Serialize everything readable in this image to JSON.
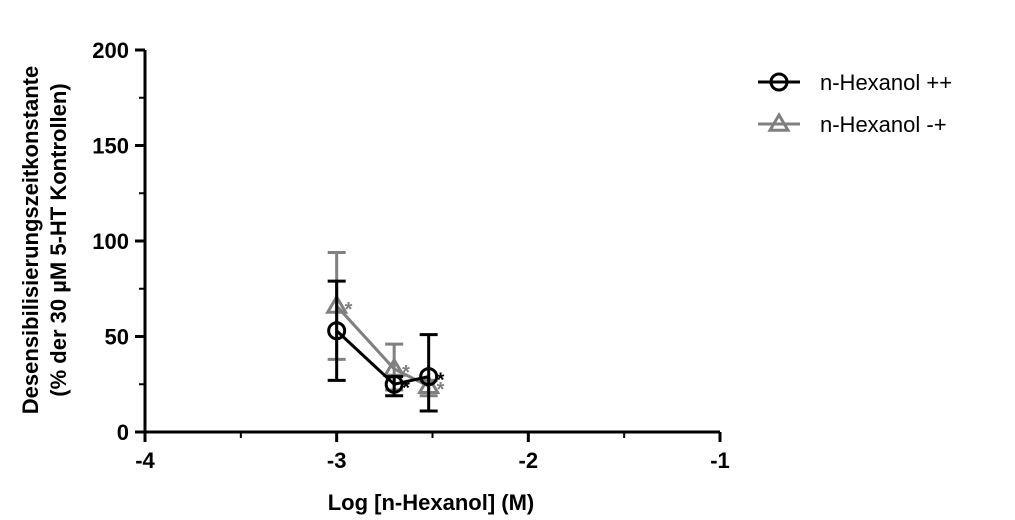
{
  "chart_data": {
    "type": "scatter",
    "title": "",
    "xlabel": "Log [n-Hexanol] (M)",
    "ylabel_line1": "Desensibilisierungszeitkonstante",
    "ylabel_line2": "(% der 30 µM 5-HT Kontrollen)",
    "xlim": [
      -4,
      -1
    ],
    "ylim": [
      0,
      200
    ],
    "x_ticks": [
      -4,
      -3,
      -2,
      -1
    ],
    "x_tick_labels": [
      "-4",
      "-3",
      "-2",
      "-1"
    ],
    "y_ticks": [
      0,
      50,
      100,
      150,
      200
    ],
    "y_tick_labels": [
      "0",
      "50",
      "100",
      "150",
      "200"
    ],
    "grid": false,
    "legend_position": "top-right",
    "series": [
      {
        "name": "n-Hexanol ++",
        "marker": "circle",
        "color": "#000000",
        "points": [
          {
            "x": -3.0,
            "y": 53,
            "err_low": 27,
            "err_high": 79,
            "annotation": ""
          },
          {
            "x": -2.7,
            "y": 25,
            "err_low": 19,
            "err_high": 29,
            "annotation": "*"
          },
          {
            "x": -2.52,
            "y": 29,
            "err_low": 11,
            "err_high": 51,
            "annotation": "*"
          }
        ]
      },
      {
        "name": "n-Hexanol -+",
        "marker": "triangle",
        "color": "#808080",
        "points": [
          {
            "x": -3.0,
            "y": 66,
            "err_low": 38,
            "err_high": 94,
            "annotation": "*"
          },
          {
            "x": -2.7,
            "y": 33,
            "err_low": 22,
            "err_high": 46,
            "annotation": "*"
          },
          {
            "x": -2.52,
            "y": 24,
            "err_low": 19,
            "err_high": 27,
            "annotation": "*"
          }
        ]
      }
    ]
  }
}
